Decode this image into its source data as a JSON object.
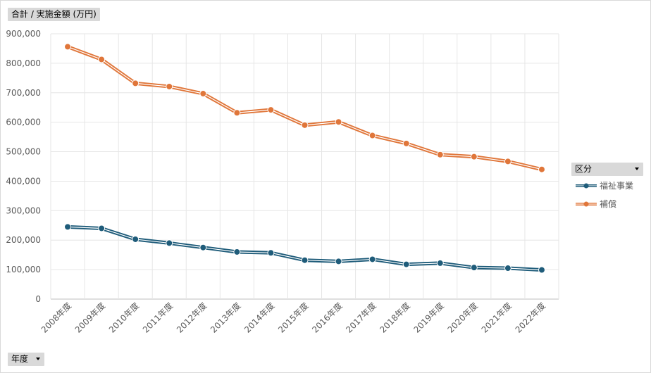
{
  "field_buttons": {
    "value_field": "合計 / 実施金額 (万円)",
    "series_field": "区分",
    "axis_field": "年度"
  },
  "chart_data": {
    "type": "line",
    "title": "",
    "xlabel": "",
    "ylabel": "",
    "categories": [
      "2008年度",
      "2009年度",
      "2010年度",
      "2011年度",
      "2012年度",
      "2013年度",
      "2014年度",
      "2015年度",
      "2016年度",
      "2017年度",
      "2018年度",
      "2019年度",
      "2020年度",
      "2021年度",
      "2022年度"
    ],
    "ylim": [
      0,
      900000
    ],
    "yticks": [
      0,
      100000,
      200000,
      300000,
      400000,
      500000,
      600000,
      700000,
      800000,
      900000
    ],
    "ytick_labels": [
      "0",
      "100,000",
      "200,000",
      "300,000",
      "400,000",
      "500,000",
      "600,000",
      "700,000",
      "800,000",
      "900,000"
    ],
    "grid": true,
    "legend_position": "right",
    "series": [
      {
        "name": "福祉事業",
        "color": "#1f5c7a",
        "values": [
          245000,
          240000,
          203000,
          190000,
          175000,
          160000,
          157000,
          132000,
          128000,
          135000,
          118000,
          122000,
          107000,
          105000,
          99000
        ]
      },
      {
        "name": "補償",
        "color": "#e0763a",
        "values": [
          856000,
          813000,
          732000,
          721000,
          697000,
          632000,
          642000,
          590000,
          601000,
          555000,
          528000,
          490000,
          483000,
          467000,
          440000
        ]
      }
    ]
  }
}
